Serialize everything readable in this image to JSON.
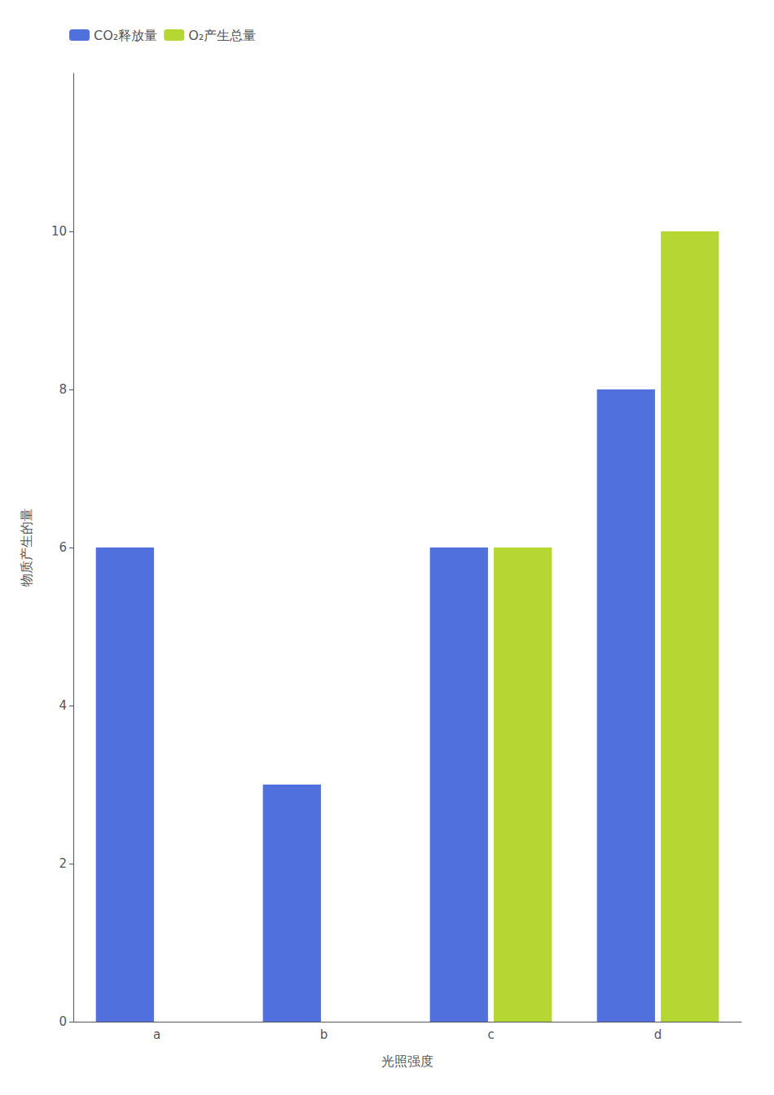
{
  "chart_data": {
    "type": "bar",
    "categories": [
      "a",
      "b",
      "c",
      "d"
    ],
    "series": [
      {
        "name": "CO₂释放量",
        "values": [
          6,
          3,
          6,
          8
        ]
      },
      {
        "name": "O₂产生总量",
        "values": [
          0,
          0,
          6,
          10
        ]
      }
    ],
    "xlabel": "光照强度",
    "ylabel": "物质产生的量",
    "ylim": [
      0,
      12
    ],
    "yticks": [
      0,
      2,
      4,
      6,
      8,
      10
    ],
    "grid": false,
    "legend": "upper left"
  }
}
